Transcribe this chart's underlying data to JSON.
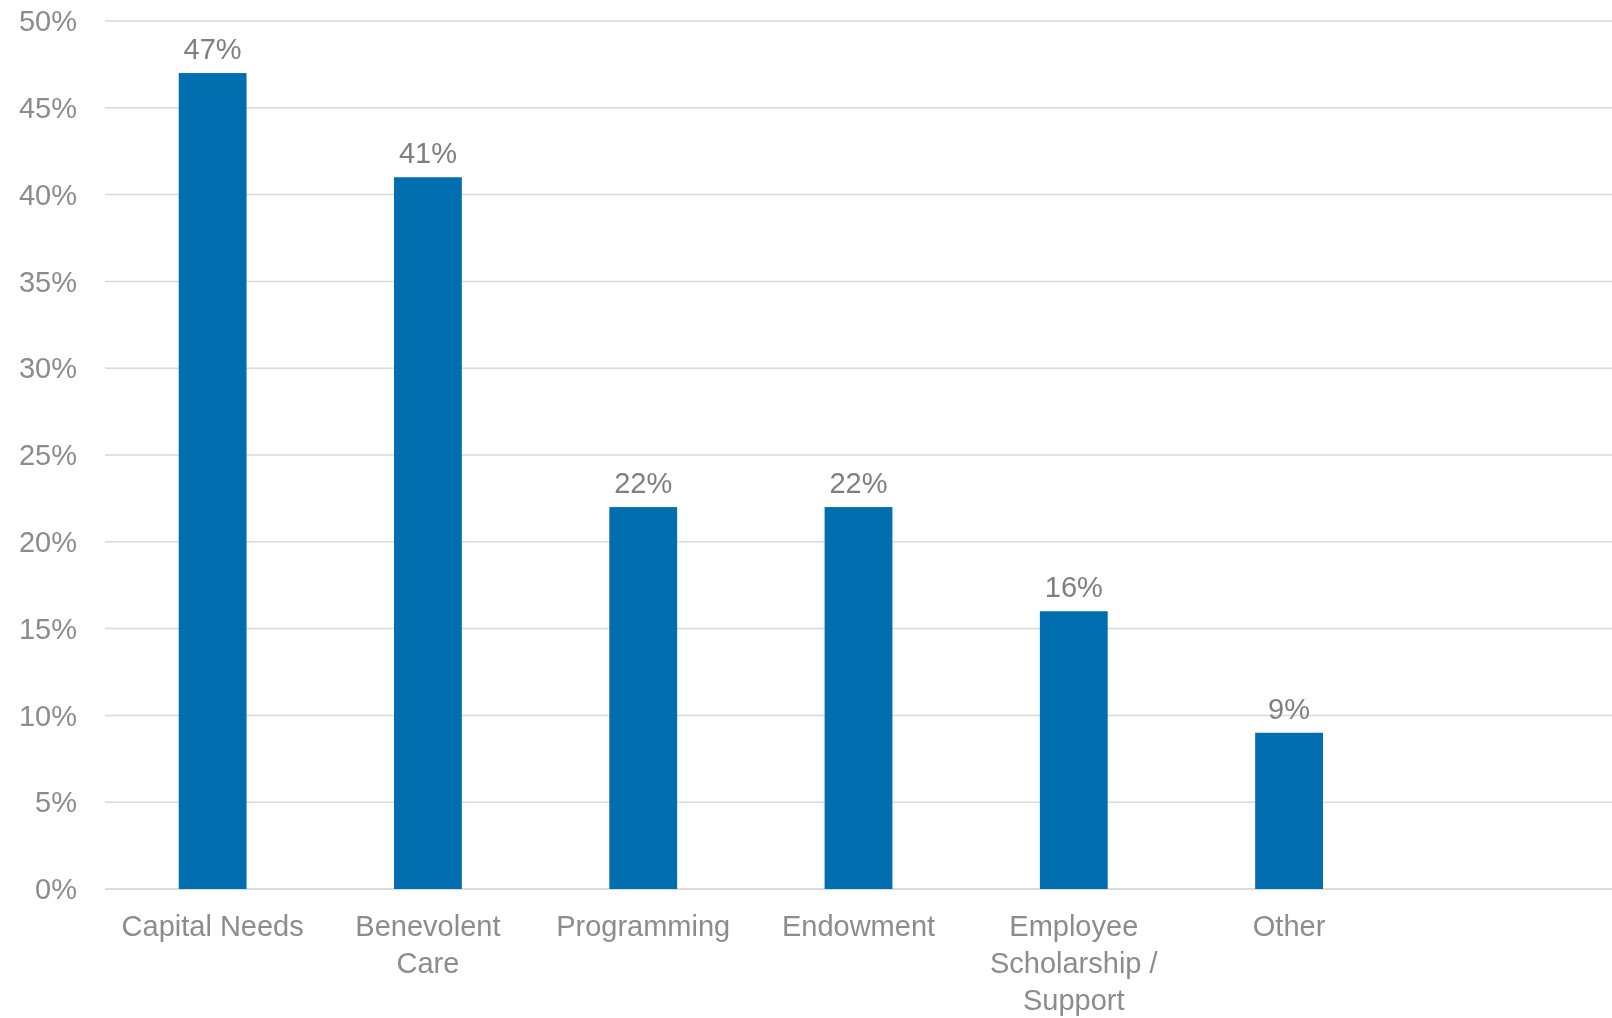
{
  "chart_data": {
    "type": "bar",
    "categories": [
      "Capital Needs",
      "Benevolent Care",
      "Programming",
      "Endowment",
      "Employee Scholarship / Support",
      "Other",
      null
    ],
    "values": [
      47,
      41,
      22,
      22,
      16,
      9,
      null
    ],
    "value_labels": [
      "47%",
      "41%",
      "22%",
      "22%",
      "16%",
      "9%",
      null
    ],
    "color": "#006eaf",
    "ylim": [
      0,
      50
    ],
    "yticks": [
      {
        "value": 0,
        "label": "0%"
      },
      {
        "value": 5,
        "label": "5%"
      },
      {
        "value": 10,
        "label": "10%"
      },
      {
        "value": 15,
        "label": "15%"
      },
      {
        "value": 20,
        "label": "20%"
      },
      {
        "value": 25,
        "label": "25%"
      },
      {
        "value": 30,
        "label": "30%"
      },
      {
        "value": 35,
        "label": "35%"
      },
      {
        "value": 40,
        "label": "40%"
      },
      {
        "value": 45,
        "label": "45%"
      },
      {
        "value": 50,
        "label": "50%"
      }
    ],
    "grid": "y"
  }
}
